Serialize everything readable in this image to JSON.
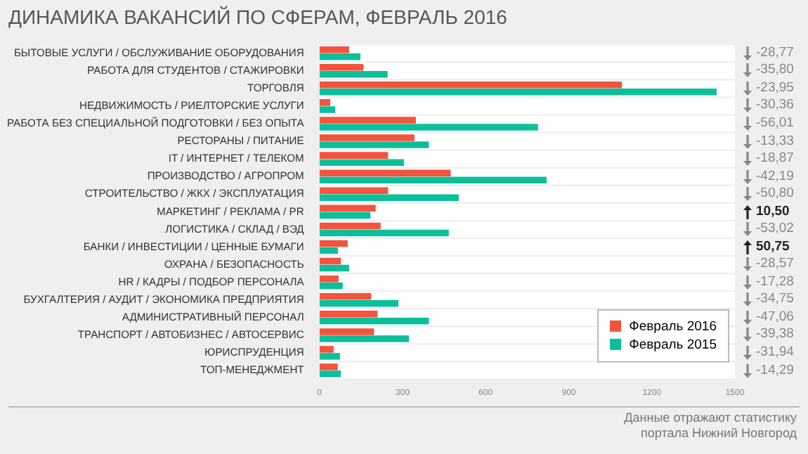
{
  "chart_data": {
    "type": "bar",
    "orientation": "horizontal",
    "title": "ДИНАМИКА ВАКАНСИЙ ПО СФЕРАМ, ФЕВРАЛЬ 2016",
    "categories": [
      "БЫТОВЫЕ УСЛУГИ / ОБСЛУЖИВАНИЕ ОБОРУДОВАНИЯ",
      "РАБОТА ДЛЯ СТУДЕНТОВ / СТАЖИРОВКИ",
      "ТОРГОВЛЯ",
      "НЕДВИЖИМОСТЬ / РИЕЛТОРСКИЕ УСЛУГИ",
      "РАБОТА БЕЗ СПЕЦИАЛЬНОЙ ПОДГОТОВКИ / БЕЗ ОПЫТА",
      "РЕСТОРАНЫ / ПИТАНИЕ",
      "IT / ИНТЕРНЕТ / ТЕЛЕКОМ",
      "ПРОИЗВОДСТВО / АГРОПРОМ",
      "СТРОИТЕЛЬСТВО / ЖКХ / ЭКСПЛУАТАЦИЯ",
      "МАРКЕТИНГ / РЕКЛАМА / PR",
      "ЛОГИСТИКА / СКЛАД / ВЭД",
      "БАНКИ / ИНВЕСТИЦИИ / ЦЕННЫЕ БУМАГИ",
      "ОХРАНА / БЕЗОПАСНОСТЬ",
      "HR / КАДРЫ / ПОДБОР ПЕРСОНАЛА",
      "БУХГАЛТЕРИЯ / АУДИТ / ЭКОНОМИКА ПРЕДПРИЯТИЯ",
      "АДМИНИСТРАТИВНЫЙ ПЕРСОНАЛ",
      "ТРАНСПОРТ / АВТОБИЗНЕС / АВТОСЕРВИС",
      "ЮРИСПРУДЕНЦИЯ",
      "ТОП-МЕНЕДЖМЕНТ"
    ],
    "series": [
      {
        "name": "Февраль 2016",
        "color": "#f4533d",
        "values": [
          107,
          159,
          1092,
          39,
          348,
          343,
          248,
          474,
          248,
          203,
          221,
          102,
          77,
          69,
          187,
          210,
          197,
          51,
          66
        ]
      },
      {
        "name": "Февраль 2015",
        "color": "#0cbf9a",
        "values": [
          148,
          246,
          1434,
          57,
          789,
          395,
          305,
          820,
          503,
          184,
          467,
          67,
          107,
          84,
          285,
          395,
          323,
          74,
          77
        ]
      }
    ],
    "xlim": [
      0,
      1500
    ],
    "xticks": [
      0,
      300,
      600,
      900,
      1200,
      1500
    ],
    "legend": "bottom right",
    "annotations": [
      "-28,77",
      "-35,80",
      "-23,95",
      "-30,36",
      "-56,01",
      "-13,33",
      "-18,87",
      "-42,19",
      "-50,80",
      "10,50",
      "-53,02",
      "50,75",
      "-28,57",
      "-17,28",
      "-34,75",
      "-47,06",
      "-39,38",
      "-31,94",
      "-14,29",
      "Данные отражают статистику портала Нижний Новгород"
    ]
  }
}
